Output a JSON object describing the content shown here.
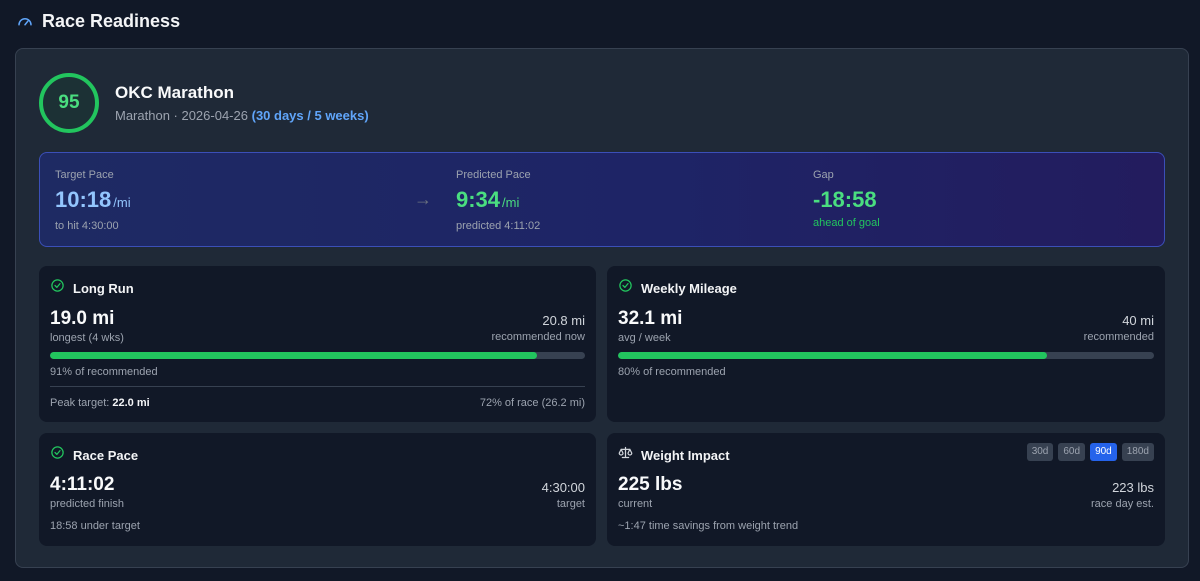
{
  "header": {
    "title": "Race Readiness",
    "icon": "gauge-icon"
  },
  "race": {
    "score": "95",
    "name": "OKC Marathon",
    "subtitle": "Marathon · 2026-04-26",
    "countdown": "(30 days / 5 weeks)"
  },
  "pace": {
    "target": {
      "label": "Target Pace",
      "value": "10:18",
      "unit": "/mi",
      "note": "to hit 4:30:00"
    },
    "predicted": {
      "label": "Predicted Pace",
      "value": "9:34",
      "unit": "/mi",
      "note": "predicted 4:11:02"
    },
    "gap": {
      "label": "Gap",
      "value": "-18:58",
      "note": "ahead of goal"
    },
    "arrow": "→"
  },
  "long_run": {
    "title": "Long Run",
    "value": "19.0 mi",
    "sub": "longest (4 wks)",
    "rec_value": "20.8 mi",
    "rec_sub": "recommended now",
    "progress": 0.91,
    "progress_text": "91% of recommended",
    "peak_label": "Peak target:",
    "peak_value": "22.0 mi",
    "peak_right": "72% of race (26.2 mi)"
  },
  "weekly_mileage": {
    "title": "Weekly Mileage",
    "value": "32.1 mi",
    "sub": "avg / week",
    "rec_value": "40 mi",
    "rec_sub": "recommended",
    "progress": 0.8,
    "progress_text": "80% of recommended"
  },
  "race_pace": {
    "title": "Race Pace",
    "value": "4:11:02",
    "sub": "predicted finish",
    "target_value": "4:30:00",
    "target_sub": "target",
    "note": "18:58 under target"
  },
  "weight": {
    "title": "Weight Impact",
    "value": "225 lbs",
    "sub": "current",
    "est_value": "223 lbs",
    "est_sub": "race day est.",
    "note": "~1:47 time savings from weight trend",
    "ranges": [
      "30d",
      "60d",
      "90d",
      "180d"
    ],
    "active_range": "90d"
  },
  "colors": {
    "accent_green": "#22c55e",
    "accent_blue": "#60a5fa",
    "active_tab": "#2563eb"
  }
}
